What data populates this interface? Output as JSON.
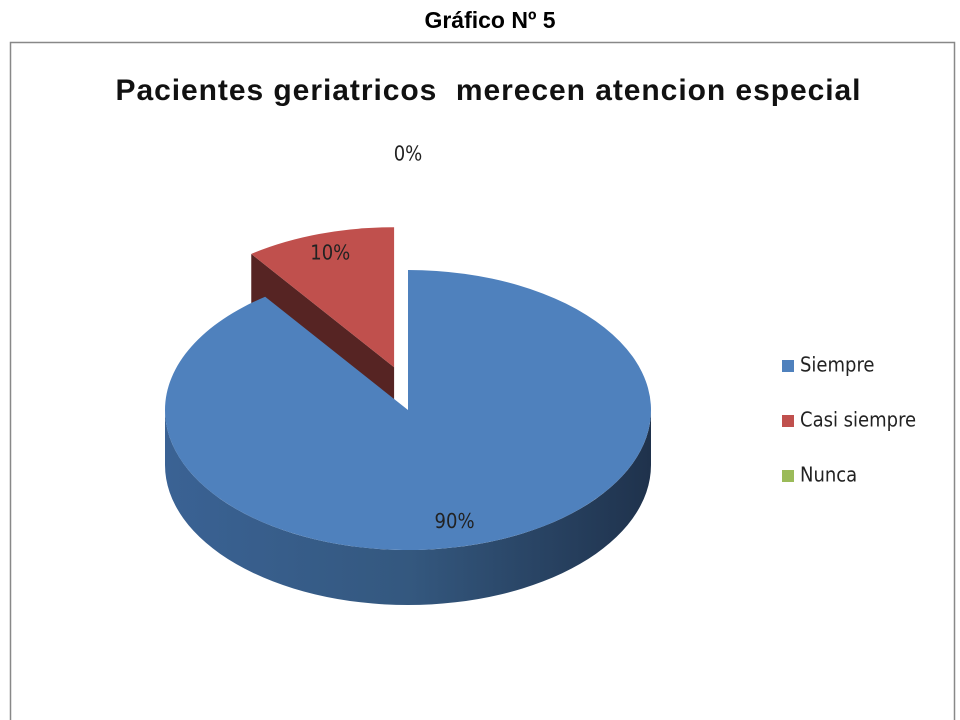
{
  "caption": "Gráfico Nº 5",
  "chart_data": {
    "type": "pie",
    "title": "Pacientes geriatricos  merecen atencion especial",
    "categories": [
      "Siempre",
      "Casi siempre",
      "Nunca"
    ],
    "values": [
      90,
      10,
      0
    ],
    "value_labels": [
      "90%",
      "10%",
      "0%"
    ],
    "colors": [
      "#4f81bd",
      "#c0504d",
      "#9bbb59"
    ],
    "legend": "right"
  }
}
